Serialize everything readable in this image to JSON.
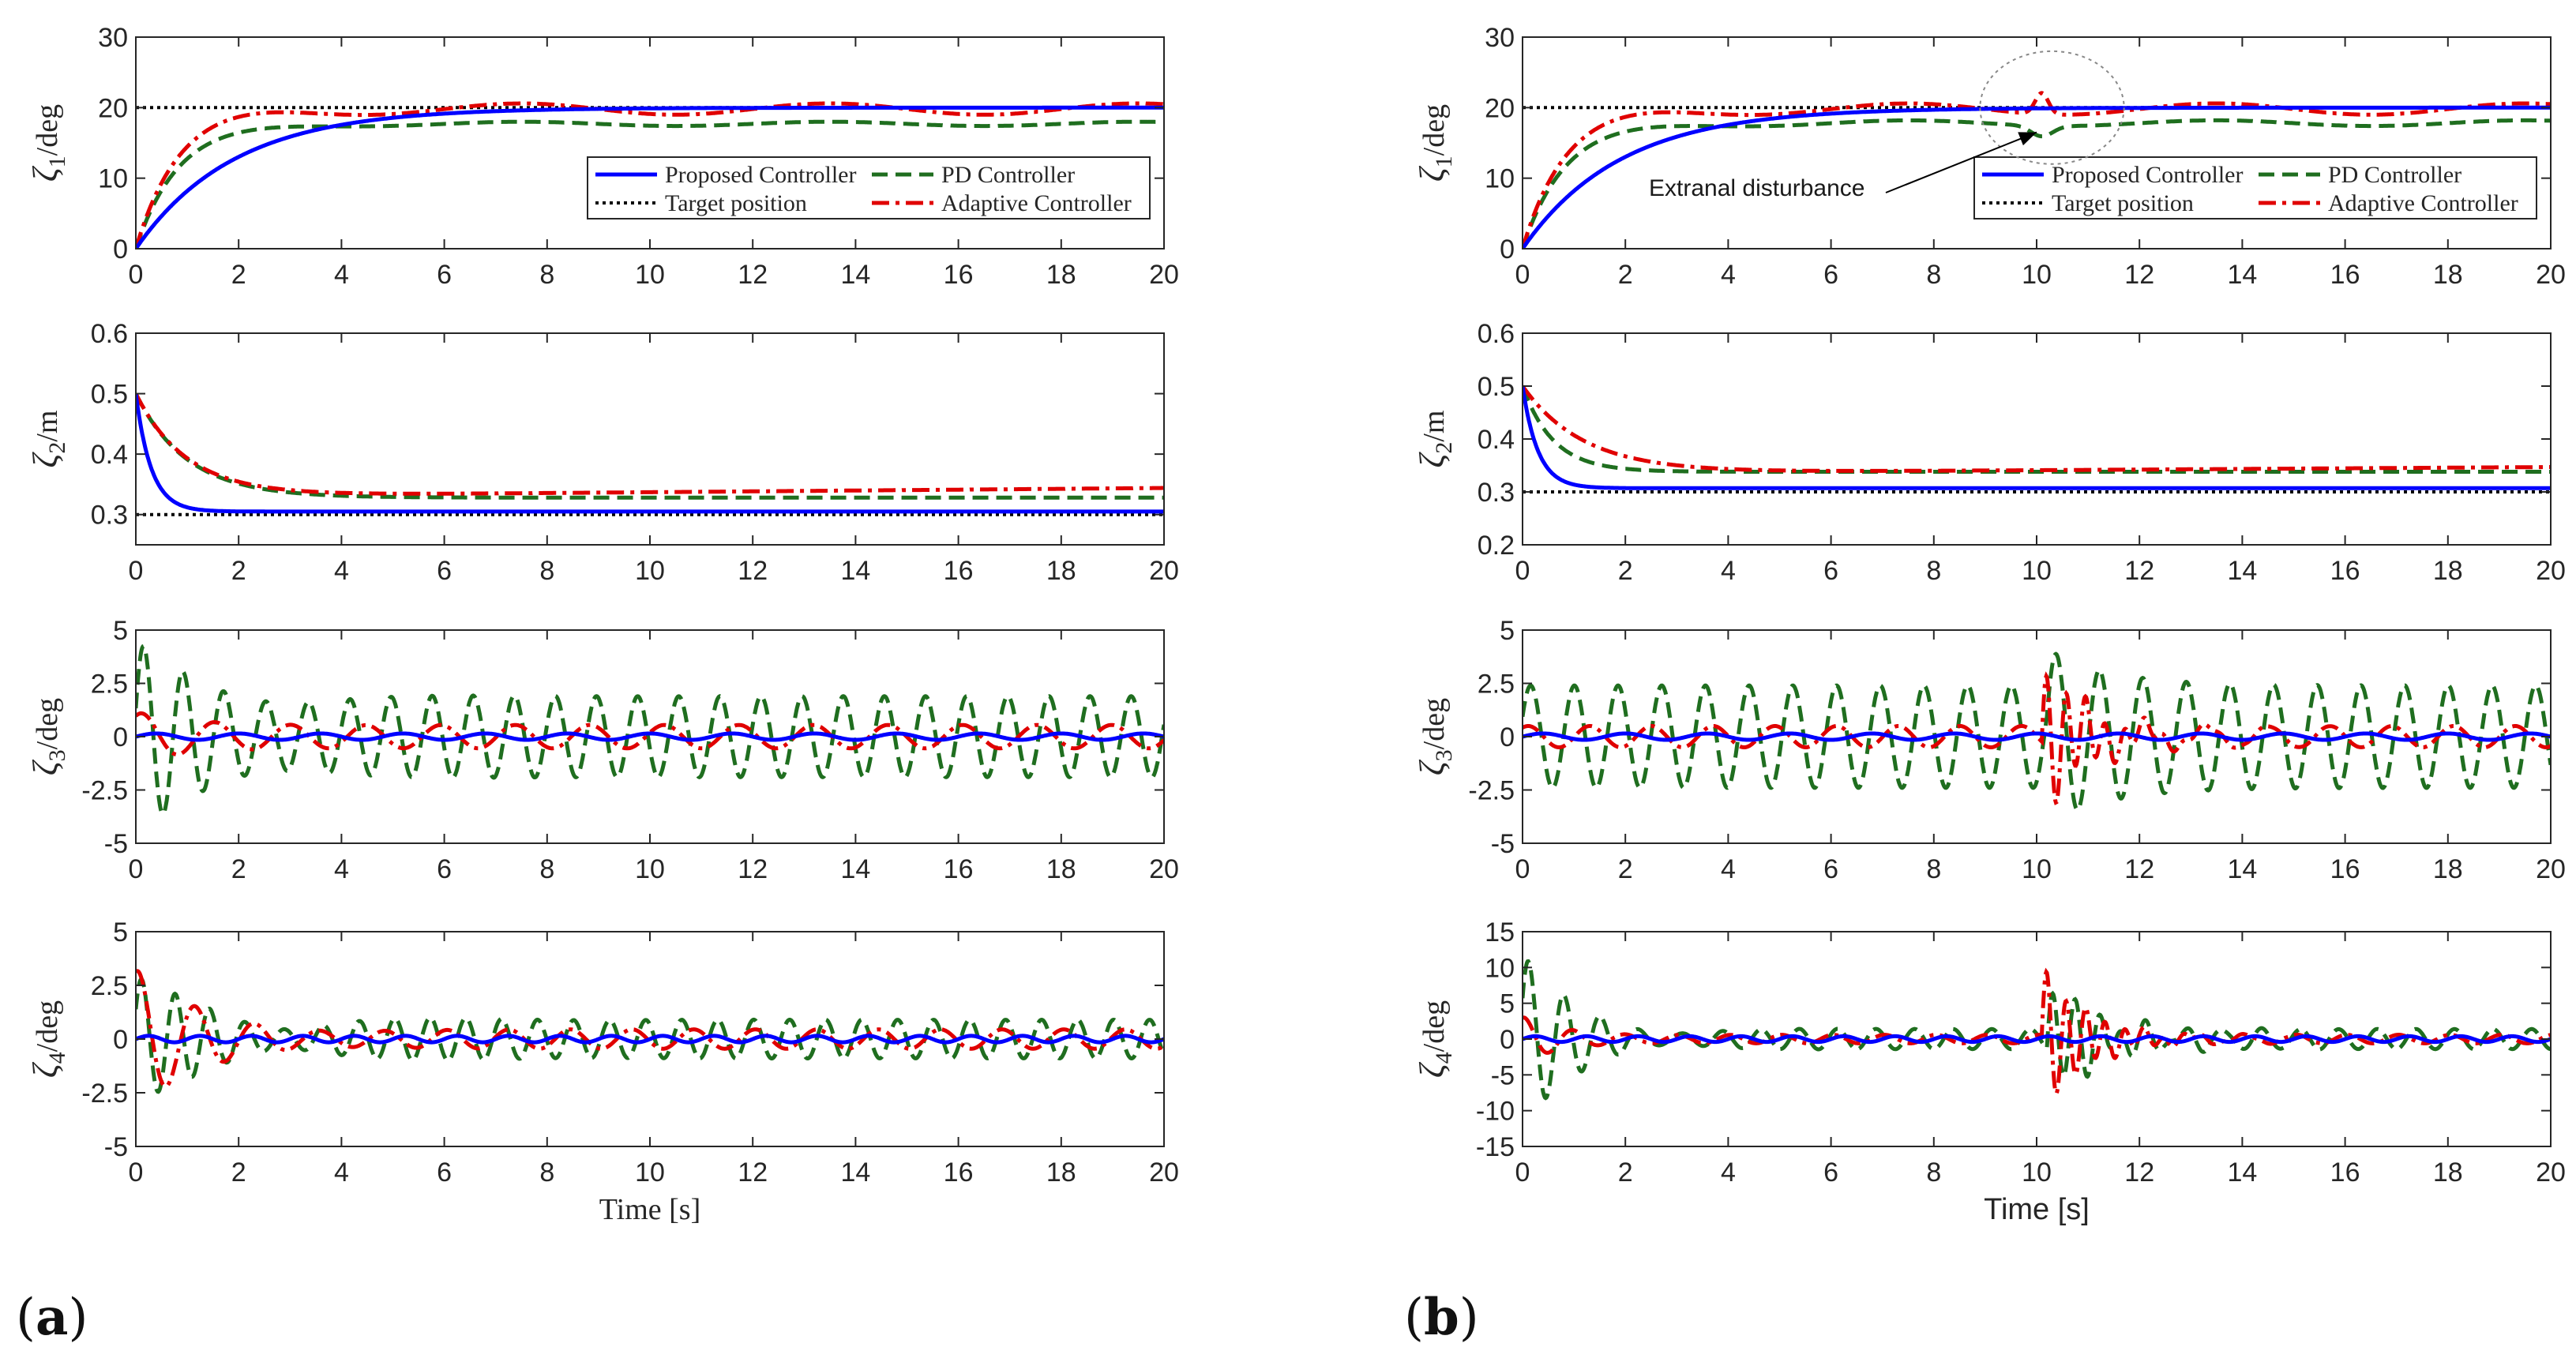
{
  "figure": {
    "panel_labels": [
      {
        "pre": "(",
        "bold": "a",
        "post": ")"
      },
      {
        "pre": "(",
        "bold": "b",
        "post": ")"
      }
    ],
    "colors": {
      "proposed": "#0000ff",
      "pd": "#1f6e1f",
      "target": "#000000",
      "adaptive": "#e00000",
      "axes": "#262626"
    }
  },
  "chart_data": [
    {
      "id": "a1",
      "type": "line",
      "panel": "a",
      "ylabel": {
        "sym": "ζ",
        "sub": "1",
        "unit": "/deg"
      },
      "xlabel": "",
      "xlim": [
        0,
        20
      ],
      "ylim": [
        0,
        30
      ],
      "xticks": [
        0,
        2,
        4,
        6,
        8,
        10,
        12,
        14,
        16,
        18,
        20
      ],
      "yticks": [
        0,
        10,
        20,
        30
      ],
      "legend": {
        "position": "lower-right",
        "entries": [
          "Proposed Controller",
          "PD Controller",
          "Target position",
          "Adaptive Controller"
        ]
      },
      "series": [
        {
          "name": "Proposed Controller",
          "kind": "exp",
          "start": 0,
          "final": 20,
          "tau": 1.9
        },
        {
          "name": "PD Controller",
          "kind": "exp",
          "start": 0,
          "final": 17.7,
          "tau": 0.8,
          "oscAmp": 0.3,
          "oscPeriod": 6
        },
        {
          "name": "Target position",
          "kind": "const",
          "value": 20
        },
        {
          "name": "Adaptive Controller",
          "kind": "exp",
          "start": 0,
          "final": 19.8,
          "tau": 0.8,
          "oscAmp": 0.8,
          "oscPeriod": 6
        }
      ]
    },
    {
      "id": "a2",
      "type": "line",
      "panel": "a",
      "ylabel": {
        "sym": "ζ",
        "sub": "2",
        "unit": "/m"
      },
      "xlabel": "",
      "xlim": [
        0,
        20
      ],
      "ylim": [
        0.25,
        0.6
      ],
      "xticks": [
        0,
        2,
        4,
        6,
        8,
        10,
        12,
        14,
        16,
        18,
        20
      ],
      "yticks": [
        0.3,
        0.4,
        0.5,
        0.6
      ],
      "series": [
        {
          "name": "Proposed Controller",
          "kind": "exp",
          "start": 0.5,
          "final": 0.305,
          "tau": 0.3
        },
        {
          "name": "PD Controller",
          "kind": "exp",
          "start": 0.5,
          "final": 0.328,
          "tau": 1.0
        },
        {
          "name": "Target position",
          "kind": "const",
          "value": 0.3
        },
        {
          "name": "Adaptive Controller",
          "kind": "exp",
          "start": 0.5,
          "final": 0.33,
          "tau": 1.0,
          "drift": 0.0007
        }
      ]
    },
    {
      "id": "a3",
      "type": "line",
      "panel": "a",
      "ylabel": {
        "sym": "ζ",
        "sub": "3",
        "unit": "/deg"
      },
      "xlabel": "",
      "xlim": [
        0,
        20
      ],
      "ylim": [
        -5,
        5
      ],
      "xticks": [
        0,
        2,
        4,
        6,
        8,
        10,
        12,
        14,
        16,
        18,
        20
      ],
      "yticks": [
        -5,
        -2.5,
        0,
        2.5,
        5
      ],
      "series": [
        {
          "name": "Proposed Controller",
          "kind": "osc",
          "amp": 0.15,
          "period": 1.6,
          "phase": 0
        },
        {
          "name": "PD Controller",
          "kind": "osc",
          "amp": 1.9,
          "period": 0.8,
          "phase": 0.3,
          "initAmp": 2.6,
          "initDecay": 1.5
        },
        {
          "name": "Adaptive Controller",
          "kind": "osc",
          "amp": 0.55,
          "period": 1.45,
          "phase": 1.0,
          "initAmp": 0.6,
          "initDecay": 1.2
        }
      ]
    },
    {
      "id": "a4",
      "type": "line",
      "panel": "a",
      "ylabel": {
        "sym": "ζ",
        "sub": "4",
        "unit": "/deg"
      },
      "xlabel": "Time [s]",
      "xlim": [
        0,
        20
      ],
      "ylim": [
        -5,
        5
      ],
      "xticks": [
        0,
        2,
        4,
        6,
        8,
        10,
        12,
        14,
        16,
        18,
        20
      ],
      "yticks": [
        -5,
        -2.5,
        0,
        2.5,
        5
      ],
      "series": [
        {
          "name": "Proposed Controller",
          "kind": "osc",
          "amp": 0.15,
          "period": 1.0,
          "phase": 0
        },
        {
          "name": "PD Controller",
          "kind": "osc",
          "amp": 0.9,
          "period": 0.7,
          "phase": 0.5,
          "initAmp": 2.0,
          "initDecay": 2.0
        },
        {
          "name": "Adaptive Controller",
          "kind": "osc",
          "amp": 0.45,
          "period": 1.2,
          "phase": 1.3,
          "initAmp": 2.8,
          "initDecay": 1.3
        }
      ]
    },
    {
      "id": "b1",
      "type": "line",
      "panel": "b",
      "ylabel": {
        "sym": "ζ",
        "sub": "1",
        "unit": "/deg"
      },
      "xlabel": "",
      "xlim": [
        0,
        20
      ],
      "ylim": [
        0,
        30
      ],
      "xticks": [
        0,
        2,
        4,
        6,
        8,
        10,
        12,
        14,
        16,
        18,
        20
      ],
      "yticks": [
        0,
        10,
        20,
        30
      ],
      "legend": {
        "position": "lower-right",
        "entries": [
          "Proposed Controller",
          "PD Controller",
          "Target position",
          "Adaptive Controller"
        ]
      },
      "annotation": {
        "text": "Extranal disturbance",
        "target_x": 10.0,
        "target_y": 16.5,
        "ellipse_center": [
          10.3,
          20
        ],
        "ellipse_radii": [
          1.4,
          8
        ]
      },
      "series": [
        {
          "name": "Proposed Controller",
          "kind": "exp",
          "start": 0,
          "final": 20,
          "tau": 1.9
        },
        {
          "name": "PD Controller",
          "kind": "exp",
          "start": 0,
          "final": 17.8,
          "tau": 0.8,
          "oscAmp": 0.4,
          "oscPeriod": 6,
          "bump": {
            "t": 10.1,
            "height": -1.5,
            "width": 0.3
          }
        },
        {
          "name": "Target position",
          "kind": "const",
          "value": 20
        },
        {
          "name": "Adaptive Controller",
          "kind": "exp",
          "start": 0,
          "final": 19.8,
          "tau": 0.8,
          "oscAmp": 0.8,
          "oscPeriod": 6,
          "bump": {
            "t": 10.1,
            "height": 3.0,
            "width": 0.18
          }
        }
      ]
    },
    {
      "id": "b2",
      "type": "line",
      "panel": "b",
      "ylabel": {
        "sym": "ζ",
        "sub": "2",
        "unit": "/m"
      },
      "xlabel": "",
      "xlim": [
        0,
        20
      ],
      "ylim": [
        0.2,
        0.6
      ],
      "xticks": [
        0,
        2,
        4,
        6,
        8,
        10,
        12,
        14,
        16,
        18,
        20
      ],
      "yticks": [
        0.2,
        0.3,
        0.4,
        0.5,
        0.6
      ],
      "series": [
        {
          "name": "Proposed Controller",
          "kind": "exp",
          "start": 0.5,
          "final": 0.307,
          "tau": 0.3
        },
        {
          "name": "PD Controller",
          "kind": "exp",
          "start": 0.5,
          "final": 0.338,
          "tau": 0.6
        },
        {
          "name": "Target position",
          "kind": "const",
          "value": 0.3
        },
        {
          "name": "Adaptive Controller",
          "kind": "exp",
          "start": 0.5,
          "final": 0.335,
          "tau": 1.2,
          "drift": 0.0006
        }
      ]
    },
    {
      "id": "b3",
      "type": "line",
      "panel": "b",
      "ylabel": {
        "sym": "ζ",
        "sub": "3",
        "unit": "/deg"
      },
      "xlabel": "",
      "xlim": [
        0,
        20
      ],
      "ylim": [
        -5,
        5
      ],
      "xticks": [
        0,
        2,
        4,
        6,
        8,
        10,
        12,
        14,
        16,
        18,
        20
      ],
      "yticks": [
        -5,
        -2.5,
        0,
        2.5,
        5
      ],
      "series": [
        {
          "name": "Proposed Controller",
          "kind": "osc",
          "amp": 0.15,
          "period": 1.6,
          "phase": 0
        },
        {
          "name": "PD Controller",
          "kind": "osc",
          "amp": 2.4,
          "period": 0.85,
          "phase": 0.4,
          "burst": {
            "t": 10.2,
            "amp": 1.8,
            "decay": 1.2
          }
        },
        {
          "name": "Adaptive Controller",
          "kind": "osc",
          "amp": 0.5,
          "period": 1.2,
          "phase": 1.0,
          "burst": {
            "t": 10.1,
            "amp": 3.6,
            "decay": 0.9,
            "period": 0.38
          }
        }
      ]
    },
    {
      "id": "b4",
      "type": "line",
      "panel": "b",
      "ylabel": {
        "sym": "ζ",
        "sub": "4",
        "unit": "/deg"
      },
      "xlabel": "Time [s]",
      "xlim": [
        0,
        20
      ],
      "ylim": [
        -15,
        15
      ],
      "xticks": [
        0,
        2,
        4,
        6,
        8,
        10,
        12,
        14,
        16,
        18,
        20
      ],
      "yticks": [
        -15,
        -10,
        -5,
        0,
        5,
        10,
        15
      ],
      "series": [
        {
          "name": "Proposed Controller",
          "kind": "osc",
          "amp": 0.4,
          "period": 1.0,
          "phase": 0
        },
        {
          "name": "PD Controller",
          "kind": "osc",
          "amp": 1.4,
          "period": 0.75,
          "phase": 0.5,
          "initAmp": 10.5,
          "initDecay": 1.1,
          "burst": {
            "t": 10.2,
            "amp": 8.5,
            "decay": 1.0,
            "period": 0.45
          }
        },
        {
          "name": "Adaptive Controller",
          "kind": "osc",
          "amp": 0.6,
          "period": 1.0,
          "phase": 1.3,
          "initAmp": 2.5,
          "initDecay": 0.8,
          "burst": {
            "t": 10.1,
            "amp": 10.0,
            "decay": 0.9,
            "period": 0.38
          }
        }
      ]
    }
  ]
}
